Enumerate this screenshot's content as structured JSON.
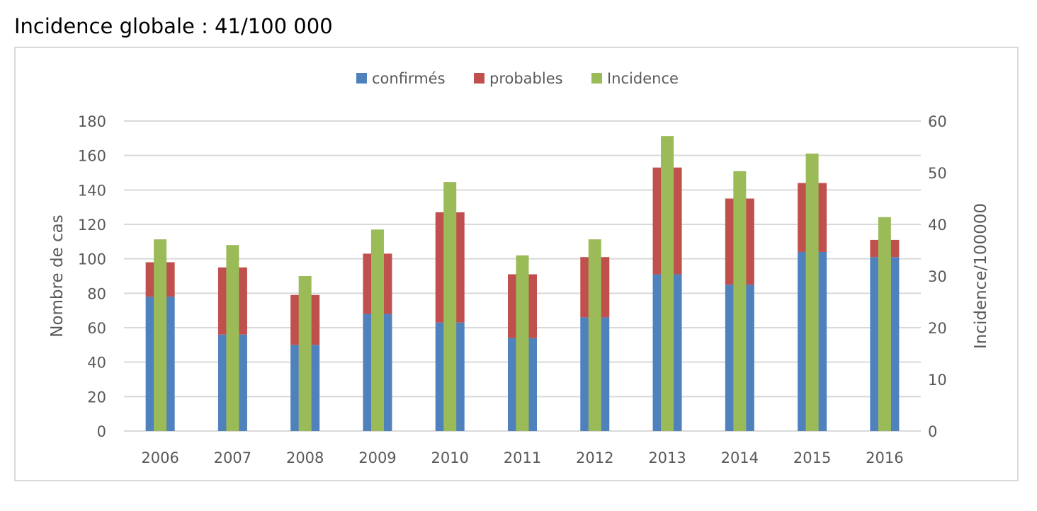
{
  "chart_data": {
    "type": "bar",
    "title": "Incidence globale : 41/100 000",
    "categories": [
      "2006",
      "2007",
      "2008",
      "2009",
      "2010",
      "2011",
      "2012",
      "2013",
      "2014",
      "2015",
      "2016"
    ],
    "series": [
      {
        "name": "confirmés",
        "axis": "left",
        "stack": "cas",
        "color": "#4f81bd",
        "values": [
          78,
          56,
          50,
          68,
          63,
          54,
          66,
          91,
          85,
          104,
          101
        ]
      },
      {
        "name": "probables",
        "axis": "left",
        "stack": "cas",
        "color": "#c0504d",
        "values": [
          20,
          39,
          29,
          35,
          64,
          37,
          35,
          62,
          50,
          40,
          10
        ]
      },
      {
        "name": "Incidence",
        "axis": "right",
        "color": "#9bbb59",
        "values": [
          37.1,
          36.0,
          30.0,
          39.0,
          48.2,
          34.0,
          37.1,
          57.1,
          50.3,
          53.7,
          41.4
        ]
      }
    ],
    "ylabel": "Nombre de cas",
    "y2label": "Incidence/100000",
    "ylim": [
      0,
      180
    ],
    "y2lim": [
      0,
      60
    ],
    "yticks": [
      "0",
      "20",
      "40",
      "60",
      "80",
      "100",
      "120",
      "140",
      "160",
      "180"
    ],
    "y2ticks": [
      "0",
      "10",
      "20",
      "30",
      "40",
      "50",
      "60"
    ],
    "grid": true,
    "legend": "top"
  }
}
